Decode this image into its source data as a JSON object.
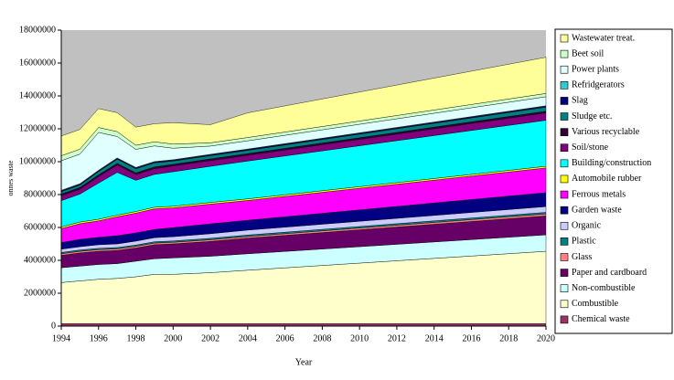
{
  "chart_data": {
    "type": "stacked-area",
    "x_label": "Year",
    "y_label": "onnes waste",
    "x": [
      1994,
      1995,
      1996,
      1997,
      1998,
      1999,
      2000,
      2002,
      2004,
      2020
    ],
    "xlim": [
      1994,
      2020
    ],
    "xticks": [
      1994,
      1996,
      1998,
      2000,
      2002,
      2004,
      2006,
      2008,
      2010,
      2012,
      2014,
      2016,
      2018,
      2020
    ],
    "ylim": [
      0,
      18000000
    ],
    "yticks": [
      0,
      2000000,
      4000000,
      6000000,
      8000000,
      10000000,
      12000000,
      14000000,
      16000000,
      18000000
    ],
    "plot_background": "#c0c0c0",
    "series": [
      {
        "name": "Chemical waste",
        "color": "#993366",
        "values": [
          150000,
          150000,
          150000,
          150000,
          150000,
          150000,
          150000,
          150000,
          150000,
          150000
        ]
      },
      {
        "name": "Combustible",
        "color": "#ffffcc",
        "values": [
          2500000,
          2600000,
          2700000,
          2750000,
          2850000,
          3000000,
          3000000,
          3100000,
          3250000,
          4400000
        ]
      },
      {
        "name": "Non-combustible",
        "color": "#ccffff",
        "values": [
          900000,
          900000,
          900000,
          900000,
          950000,
          950000,
          1000000,
          1000000,
          1000000,
          1000000
        ]
      },
      {
        "name": "Paper and cardboard",
        "color": "#660066",
        "values": [
          750000,
          800000,
          800000,
          800000,
          800000,
          850000,
          850000,
          900000,
          950000,
          1150000
        ]
      },
      {
        "name": "Glass",
        "color": "#ff8080",
        "values": [
          100000,
          100000,
          100000,
          100000,
          100000,
          100000,
          100000,
          100000,
          100000,
          120000
        ]
      },
      {
        "name": "Plastic",
        "color": "#008080",
        "values": [
          80000,
          80000,
          80000,
          80000,
          80000,
          80000,
          80000,
          90000,
          90000,
          100000
        ]
      },
      {
        "name": "Organic",
        "color": "#ccccff",
        "values": [
          200000,
          200000,
          220000,
          220000,
          240000,
          250000,
          260000,
          280000,
          300000,
          350000
        ]
      },
      {
        "name": "Garden waste",
        "color": "#000080",
        "values": [
          400000,
          450000,
          450000,
          500000,
          500000,
          500000,
          550000,
          600000,
          600000,
          850000
        ]
      },
      {
        "name": "Ferrous metals",
        "color": "#ff00ff",
        "values": [
          850000,
          950000,
          1000000,
          1150000,
          1200000,
          1250000,
          1200000,
          1200000,
          1200000,
          1500000
        ]
      },
      {
        "name": "Automobile rubber",
        "color": "#ffff00",
        "values": [
          100000,
          100000,
          100000,
          100000,
          100000,
          100000,
          100000,
          100000,
          100000,
          100000
        ]
      },
      {
        "name": "Building/construction",
        "color": "#00ffff",
        "values": [
          1600000,
          1700000,
          2200000,
          2600000,
          1900000,
          2000000,
          2100000,
          2200000,
          2300000,
          2800000
        ]
      },
      {
        "name": "Soil/stone",
        "color": "#800080",
        "values": [
          300000,
          300000,
          400000,
          450000,
          350000,
          350000,
          350000,
          350000,
          350000,
          450000
        ]
      },
      {
        "name": "Various recyclable",
        "color": "#330033",
        "values": [
          100000,
          100000,
          100000,
          100000,
          100000,
          100000,
          100000,
          100000,
          100000,
          100000
        ]
      },
      {
        "name": "Sludge etc.",
        "color": "#008080",
        "values": [
          150000,
          150000,
          200000,
          250000,
          250000,
          250000,
          200000,
          200000,
          200000,
          250000
        ]
      },
      {
        "name": "Slag",
        "color": "#000080",
        "values": [
          50000,
          50000,
          50000,
          50000,
          50000,
          50000,
          50000,
          50000,
          50000,
          50000
        ]
      },
      {
        "name": "Refridgerators",
        "color": "#33cccc",
        "values": [
          30000,
          30000,
          30000,
          30000,
          30000,
          30000,
          30000,
          30000,
          30000,
          30000
        ]
      },
      {
        "name": "Power plants",
        "color": "#e0ffff",
        "values": [
          1800000,
          1800000,
          2300000,
          1300000,
          1100000,
          950000,
          700000,
          500000,
          500000,
          550000
        ]
      },
      {
        "name": "Beet soil",
        "color": "#ccffcc",
        "values": [
          300000,
          300000,
          300000,
          300000,
          250000,
          250000,
          250000,
          200000,
          200000,
          200000
        ]
      },
      {
        "name": "Wastewater treat.",
        "color": "#ffff99",
        "values": [
          1200000,
          1200000,
          1150000,
          1150000,
          1100000,
          1100000,
          1300000,
          1100000,
          1500000,
          2200000
        ]
      }
    ]
  }
}
